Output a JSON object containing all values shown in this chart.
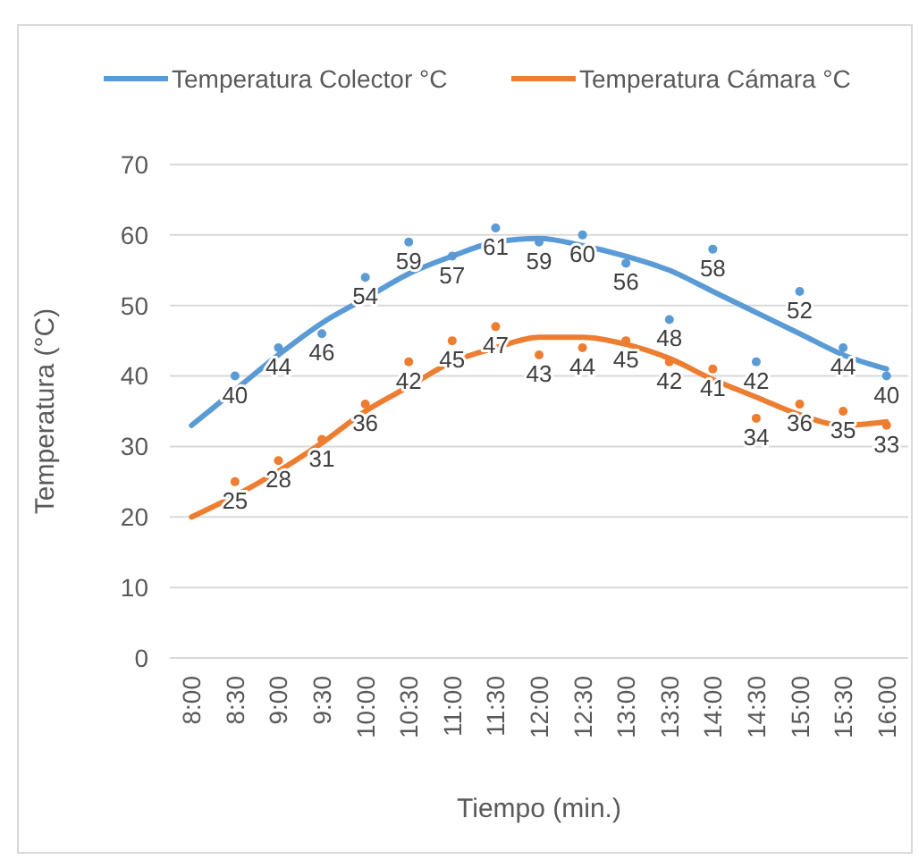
{
  "chart_data": {
    "type": "line",
    "xlabel": "Tiempo (min.)",
    "ylabel": "Temperatura (°C)",
    "categories": [
      "8:00",
      "8:30",
      "9:00",
      "9:30",
      "10:00",
      "10:30",
      "11:00",
      "11:30",
      "12:00",
      "12:30",
      "13:00",
      "13:30",
      "14:00",
      "14:30",
      "15:00",
      "15:30",
      "16:00"
    ],
    "series": [
      {
        "name": "Temperatura Colector °C",
        "color": "#5b9bd5",
        "values": [
          33,
          38,
          43,
          47.5,
          51,
          54.5,
          57,
          59,
          59.5,
          58.5,
          57,
          55,
          52,
          49,
          46,
          43,
          41
        ]
      },
      {
        "name": "Temperatura Cámara °C",
        "color": "#ed7d31",
        "values": [
          20,
          23,
          26.5,
          30.5,
          35,
          38.5,
          42,
          44,
          45.5,
          45.5,
          44.5,
          42.5,
          39.5,
          37,
          34.5,
          33,
          33.5
        ]
      },
      {
        "type": "scatter",
        "color": "#5b9bd5",
        "marker": "circle",
        "data_labels": true,
        "values": [
          null,
          40,
          44,
          46,
          54,
          59,
          57,
          61,
          59,
          60,
          56,
          48,
          58,
          42,
          52,
          44,
          40
        ]
      },
      {
        "type": "scatter",
        "color": "#ed7d31",
        "marker": "circle",
        "data_labels": true,
        "values": [
          null,
          25,
          28,
          31,
          36,
          42,
          45,
          47,
          43,
          44,
          45,
          42,
          41,
          34,
          36,
          35,
          33
        ]
      }
    ],
    "ylim": [
      0,
      70
    ],
    "yticks": [
      0,
      10,
      20,
      30,
      40,
      50,
      60,
      70
    ],
    "grid": "y",
    "legend": "top",
    "line_style": "solid"
  }
}
